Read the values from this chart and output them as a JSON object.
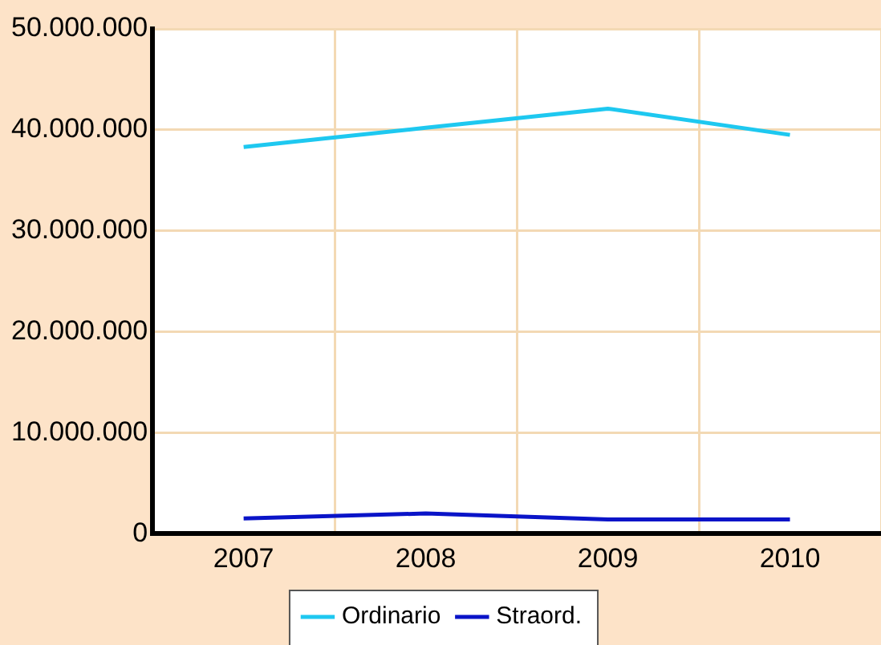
{
  "chart_data": {
    "type": "line",
    "categories": [
      "2007",
      "2008",
      "2009",
      "2010"
    ],
    "series": [
      {
        "name": "Ordinario",
        "color": "#1ec8f0",
        "values": [
          38300000,
          40200000,
          42100000,
          39500000
        ]
      },
      {
        "name": "Straord.",
        "color": "#0a14c8",
        "values": [
          1500000,
          2000000,
          1400000,
          1400000
        ]
      }
    ],
    "ylim": [
      0,
      50000000
    ],
    "yticks": [
      {
        "value": 0,
        "label": "0"
      },
      {
        "value": 10000000,
        "label": "10.000.000"
      },
      {
        "value": 20000000,
        "label": "20.000.000"
      },
      {
        "value": 30000000,
        "label": "30.000.000"
      },
      {
        "value": 40000000,
        "label": "40.000.000"
      },
      {
        "value": 50000000,
        "label": "50.000.000"
      }
    ],
    "grid": true,
    "legend": "bottom",
    "marker": "none",
    "line_style": "solid"
  }
}
